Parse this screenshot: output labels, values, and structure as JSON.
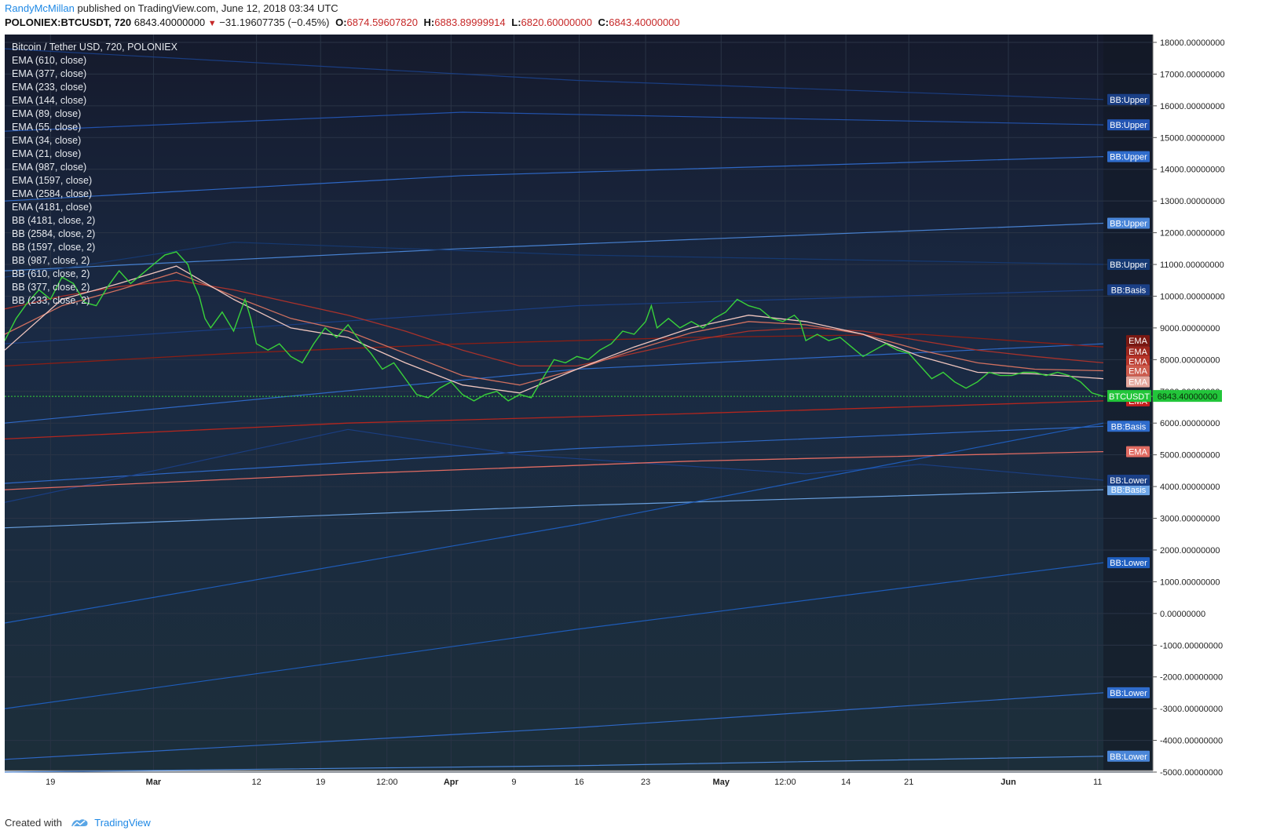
{
  "header": {
    "author": "RandyMcMillan",
    "published_text": "published on TradingView.com, June 12, 2018 03:34 UTC"
  },
  "symbol_line": {
    "symbol": "POLONIEX:BTCUSDT, 720",
    "last": "6843.40000000",
    "change": "−31.19607735 (−0.45%)",
    "o_label": "O:",
    "o_value": "6874.59607820",
    "h_label": "H:",
    "h_value": "6883.89999914",
    "l_label": "L:",
    "l_value": "6820.60000000",
    "c_label": "C:",
    "c_value": "6843.40000000"
  },
  "legend": {
    "title": "Bitcoin / Tether USD, 720, POLONIEX",
    "items": [
      "EMA (610, close)",
      "EMA (377, close)",
      "EMA (233, close)",
      "EMA (144, close)",
      "EMA (89, close)",
      "EMA (55, close)",
      "EMA (34, close)",
      "EMA (21, close)",
      "EMA (987, close)",
      "EMA (1597, close)",
      "EMA (2584, close)",
      "EMA (4181, close)",
      "BB (4181, close, 2)",
      "BB (2584, close, 2)",
      "BB (1597, close, 2)",
      "BB (987, close, 2)",
      "BB (610, close, 2)",
      "BB (377, close, 2)",
      "BB (233, close, 2)"
    ]
  },
  "footer": {
    "created_with": "Created with",
    "brand": "TradingView"
  },
  "colors": {
    "background": "#131722",
    "price": "#39d23a",
    "ema_red": "#a8322b",
    "ema_pink": "#e8a7a0",
    "bb_blue": "#2f6ccc",
    "price_tag": "#22c53a"
  },
  "chart_data": {
    "type": "line",
    "symbol": "POLONIEX:BTCUSDT",
    "interval": "720",
    "ylim": [
      -5000,
      18000
    ],
    "y_ticks": [
      18000,
      17000,
      16000,
      15000,
      14000,
      13000,
      12000,
      11000,
      10000,
      9000,
      8000,
      7000,
      6000,
      5000,
      4000,
      3000,
      2000,
      1000,
      0,
      -1000,
      -2000,
      -3000,
      -4000,
      -5000
    ],
    "y_tick_labels": [
      "18000.00000000",
      "17000.00000000",
      "16000.00000000",
      "15000.00000000",
      "14000.00000000",
      "13000.00000000",
      "12000.00000000",
      "11000.00000000",
      "10000.00000000",
      "9000.00000000",
      "8000.00000000",
      "7000.00000000",
      "6000.00000000",
      "5000.00000000",
      "4000.00000000",
      "3000.00000000",
      "2000.00000000",
      "1000.00000000",
      "0.00000000",
      "-1000.00000000",
      "-2000.00000000",
      "-3000.00000000",
      "-4000.00000000",
      "-5000.00000000"
    ],
    "x_ticks": [
      {
        "t": 0.04,
        "label": "19"
      },
      {
        "t": 0.13,
        "label": "Mar"
      },
      {
        "t": 0.22,
        "label": "12"
      },
      {
        "t": 0.276,
        "label": "19"
      },
      {
        "t": 0.334,
        "label": "12:00"
      },
      {
        "t": 0.39,
        "label": "Apr"
      },
      {
        "t": 0.445,
        "label": "9"
      },
      {
        "t": 0.502,
        "label": "16"
      },
      {
        "t": 0.56,
        "label": "23"
      },
      {
        "t": 0.626,
        "label": "May"
      },
      {
        "t": 0.682,
        "label": "12:00"
      },
      {
        "t": 0.735,
        "label": "14"
      },
      {
        "t": 0.79,
        "label": "21"
      },
      {
        "t": 0.877,
        "label": "Jun"
      },
      {
        "t": 0.955,
        "label": "11"
      }
    ],
    "price": [
      [
        0.0,
        8600
      ],
      [
        0.01,
        9300
      ],
      [
        0.02,
        9800
      ],
      [
        0.03,
        10200
      ],
      [
        0.04,
        9900
      ],
      [
        0.05,
        10600
      ],
      [
        0.06,
        10400
      ],
      [
        0.07,
        9800
      ],
      [
        0.08,
        9700
      ],
      [
        0.09,
        10300
      ],
      [
        0.1,
        10800
      ],
      [
        0.11,
        10400
      ],
      [
        0.12,
        10700
      ],
      [
        0.13,
        11000
      ],
      [
        0.14,
        11300
      ],
      [
        0.15,
        11400
      ],
      [
        0.16,
        11000
      ],
      [
        0.165,
        10400
      ],
      [
        0.17,
        10000
      ],
      [
        0.175,
        9300
      ],
      [
        0.18,
        9000
      ],
      [
        0.19,
        9500
      ],
      [
        0.2,
        8900
      ],
      [
        0.205,
        9400
      ],
      [
        0.21,
        9900
      ],
      [
        0.215,
        9300
      ],
      [
        0.22,
        8500
      ],
      [
        0.23,
        8300
      ],
      [
        0.24,
        8500
      ],
      [
        0.25,
        8100
      ],
      [
        0.26,
        7900
      ],
      [
        0.27,
        8500
      ],
      [
        0.28,
        9000
      ],
      [
        0.29,
        8700
      ],
      [
        0.3,
        9100
      ],
      [
        0.31,
        8600
      ],
      [
        0.32,
        8200
      ],
      [
        0.33,
        7700
      ],
      [
        0.34,
        7900
      ],
      [
        0.35,
        7400
      ],
      [
        0.36,
        6900
      ],
      [
        0.37,
        6800
      ],
      [
        0.38,
        7100
      ],
      [
        0.39,
        7300
      ],
      [
        0.4,
        6900
      ],
      [
        0.41,
        6700
      ],
      [
        0.42,
        6900
      ],
      [
        0.43,
        7000
      ],
      [
        0.44,
        6700
      ],
      [
        0.45,
        6900
      ],
      [
        0.46,
        6800
      ],
      [
        0.47,
        7400
      ],
      [
        0.48,
        8000
      ],
      [
        0.49,
        7900
      ],
      [
        0.5,
        8100
      ],
      [
        0.51,
        8000
      ],
      [
        0.52,
        8300
      ],
      [
        0.53,
        8500
      ],
      [
        0.54,
        8900
      ],
      [
        0.55,
        8800
      ],
      [
        0.56,
        9200
      ],
      [
        0.565,
        9700
      ],
      [
        0.57,
        9000
      ],
      [
        0.58,
        9300
      ],
      [
        0.59,
        9000
      ],
      [
        0.6,
        9200
      ],
      [
        0.61,
        9000
      ],
      [
        0.62,
        9300
      ],
      [
        0.63,
        9500
      ],
      [
        0.64,
        9900
      ],
      [
        0.65,
        9700
      ],
      [
        0.66,
        9600
      ],
      [
        0.67,
        9300
      ],
      [
        0.68,
        9200
      ],
      [
        0.69,
        9400
      ],
      [
        0.695,
        9200
      ],
      [
        0.7,
        8600
      ],
      [
        0.71,
        8800
      ],
      [
        0.72,
        8600
      ],
      [
        0.73,
        8700
      ],
      [
        0.74,
        8400
      ],
      [
        0.75,
        8100
      ],
      [
        0.76,
        8300
      ],
      [
        0.77,
        8500
      ],
      [
        0.78,
        8300
      ],
      [
        0.79,
        8200
      ],
      [
        0.8,
        7800
      ],
      [
        0.81,
        7400
      ],
      [
        0.82,
        7600
      ],
      [
        0.83,
        7300
      ],
      [
        0.84,
        7100
      ],
      [
        0.85,
        7300
      ],
      [
        0.86,
        7600
      ],
      [
        0.87,
        7500
      ],
      [
        0.88,
        7500
      ],
      [
        0.89,
        7600
      ],
      [
        0.9,
        7600
      ],
      [
        0.91,
        7500
      ],
      [
        0.92,
        7600
      ],
      [
        0.93,
        7500
      ],
      [
        0.94,
        7300
      ],
      [
        0.95,
        6950
      ],
      [
        0.96,
        6843
      ]
    ],
    "ema_fast": [
      [
        0.0,
        8300
      ],
      [
        0.05,
        9900
      ],
      [
        0.1,
        10400
      ],
      [
        0.15,
        10950
      ],
      [
        0.2,
        9900
      ],
      [
        0.25,
        9000
      ],
      [
        0.3,
        8700
      ],
      [
        0.35,
        7900
      ],
      [
        0.4,
        7200
      ],
      [
        0.45,
        6950
      ],
      [
        0.5,
        7700
      ],
      [
        0.55,
        8400
      ],
      [
        0.6,
        9000
      ],
      [
        0.65,
        9400
      ],
      [
        0.7,
        9200
      ],
      [
        0.75,
        8800
      ],
      [
        0.8,
        8100
      ],
      [
        0.85,
        7600
      ],
      [
        0.9,
        7550
      ],
      [
        0.96,
        7400
      ]
    ],
    "ema_mid": [
      [
        0.0,
        8800
      ],
      [
        0.05,
        9700
      ],
      [
        0.1,
        10200
      ],
      [
        0.15,
        10750
      ],
      [
        0.2,
        10000
      ],
      [
        0.25,
        9300
      ],
      [
        0.3,
        8900
      ],
      [
        0.35,
        8200
      ],
      [
        0.4,
        7500
      ],
      [
        0.45,
        7200
      ],
      [
        0.5,
        7700
      ],
      [
        0.55,
        8300
      ],
      [
        0.6,
        8850
      ],
      [
        0.65,
        9200
      ],
      [
        0.7,
        9100
      ],
      [
        0.75,
        8800
      ],
      [
        0.8,
        8300
      ],
      [
        0.85,
        7900
      ],
      [
        0.9,
        7700
      ],
      [
        0.96,
        7650
      ]
    ],
    "ema_slow": [
      [
        0.0,
        9600
      ],
      [
        0.05,
        10000
      ],
      [
        0.1,
        10300
      ],
      [
        0.15,
        10500
      ],
      [
        0.2,
        10200
      ],
      [
        0.25,
        9800
      ],
      [
        0.3,
        9400
      ],
      [
        0.35,
        8900
      ],
      [
        0.4,
        8300
      ],
      [
        0.45,
        7800
      ],
      [
        0.5,
        7800
      ],
      [
        0.55,
        8200
      ],
      [
        0.6,
        8600
      ],
      [
        0.65,
        8900
      ],
      [
        0.7,
        9000
      ],
      [
        0.75,
        8900
      ],
      [
        0.8,
        8600
      ],
      [
        0.85,
        8300
      ],
      [
        0.9,
        8100
      ],
      [
        0.96,
        7900
      ]
    ],
    "ema_long": [
      [
        0.0,
        7800
      ],
      [
        0.2,
        8200
      ],
      [
        0.4,
        8500
      ],
      [
        0.6,
        8700
      ],
      [
        0.8,
        8800
      ],
      [
        0.96,
        8400
      ]
    ],
    "ema_1597": [
      [
        0.0,
        5500
      ],
      [
        0.3,
        6000
      ],
      [
        0.6,
        6300
      ],
      [
        0.96,
        6700
      ]
    ],
    "ema_2584": [
      [
        0.0,
        3900
      ],
      [
        0.3,
        4400
      ],
      [
        0.6,
        4800
      ],
      [
        0.96,
        5100
      ]
    ],
    "bb_lines": [
      {
        "name": "BB:Upper",
        "points": [
          [
            0.0,
            17800
          ],
          [
            0.5,
            16800
          ],
          [
            0.96,
            16200
          ]
        ]
      },
      {
        "name": "BB:Upper",
        "points": [
          [
            0.0,
            15200
          ],
          [
            0.4,
            15800
          ],
          [
            0.96,
            15400
          ]
        ]
      },
      {
        "name": "BB:Upper",
        "points": [
          [
            0.0,
            13000
          ],
          [
            0.4,
            13800
          ],
          [
            0.96,
            14400
          ]
        ]
      },
      {
        "name": "BB:Upper",
        "points": [
          [
            0.0,
            10800
          ],
          [
            0.4,
            11500
          ],
          [
            0.96,
            12300
          ]
        ]
      },
      {
        "name": "BB:Upper",
        "points": [
          [
            0.0,
            10600
          ],
          [
            0.2,
            11700
          ],
          [
            0.5,
            11300
          ],
          [
            0.96,
            11000
          ]
        ]
      },
      {
        "name": "BB:Basis",
        "points": [
          [
            0.0,
            8500
          ],
          [
            0.5,
            9700
          ],
          [
            0.96,
            10200
          ]
        ]
      },
      {
        "name": "BB:Basis",
        "points": [
          [
            0.0,
            6000
          ],
          [
            0.5,
            7700
          ],
          [
            0.96,
            8500
          ]
        ]
      },
      {
        "name": "BB:Basis",
        "points": [
          [
            0.0,
            4100
          ],
          [
            0.5,
            5200
          ],
          [
            0.96,
            5900
          ]
        ]
      },
      {
        "name": "BB:Basis",
        "points": [
          [
            0.0,
            2700
          ],
          [
            0.5,
            3400
          ],
          [
            0.96,
            3900
          ]
        ]
      },
      {
        "name": "BB:Lower",
        "points": [
          [
            0.0,
            3500
          ],
          [
            0.3,
            5800
          ],
          [
            0.45,
            5000
          ],
          [
            0.7,
            4400
          ],
          [
            0.8,
            4700
          ],
          [
            0.96,
            4200
          ]
        ]
      },
      {
        "name": "BB:Lower",
        "points": [
          [
            0.0,
            -300
          ],
          [
            0.5,
            2800
          ],
          [
            0.96,
            6000
          ]
        ]
      },
      {
        "name": "BB:Lower",
        "points": [
          [
            0.0,
            -3000
          ],
          [
            0.5,
            -500
          ],
          [
            0.96,
            1600
          ]
        ]
      },
      {
        "name": "BB:Lower",
        "points": [
          [
            0.0,
            -4600
          ],
          [
            0.5,
            -3600
          ],
          [
            0.96,
            -2500
          ]
        ]
      },
      {
        "name": "BB:Lower",
        "points": [
          [
            0.0,
            -5000
          ],
          [
            0.5,
            -4800
          ],
          [
            0.96,
            -4500
          ]
        ]
      }
    ],
    "right_labels": [
      {
        "text": "BB:Upper",
        "y": 16200,
        "color": "#1a3f86"
      },
      {
        "text": "BB:Upper",
        "y": 15400,
        "color": "#2355b3"
      },
      {
        "text": "BB:Upper",
        "y": 14400,
        "color": "#2f6ccc"
      },
      {
        "text": "BB:Upper",
        "y": 12300,
        "color": "#4a86d8"
      },
      {
        "text": "BB:Upper",
        "y": 11000,
        "color": "#163a74"
      },
      {
        "text": "BB:Basis",
        "y": 10200,
        "color": "#1a3f86"
      },
      {
        "text": "BB:Basis",
        "y": 5900,
        "color": "#2f6ccc"
      },
      {
        "text": "BB:Basis",
        "y": 3900,
        "color": "#6ea6e8"
      },
      {
        "text": "BB:Lower",
        "y": 4200,
        "color": "#1a3f86"
      },
      {
        "text": "BB:Lower",
        "y": 1600,
        "color": "#1f5fc0"
      },
      {
        "text": "BB:Lower",
        "y": -2500,
        "color": "#2f6ccc"
      },
      {
        "text": "BB:Lower",
        "y": -4500,
        "color": "#4a86d8"
      },
      {
        "text": "EMA",
        "y": 8600,
        "color": "#7a1812"
      },
      {
        "text": "EMA",
        "y": 8250,
        "color": "#9c251c"
      },
      {
        "text": "EMA",
        "y": 7950,
        "color": "#b7352a"
      },
      {
        "text": "EMA",
        "y": 7650,
        "color": "#cc5a4c"
      },
      {
        "text": "EMA",
        "y": 7300,
        "color": "#e4a89e"
      },
      {
        "text": "EMA",
        "y": 6700,
        "color": "#c61f1f"
      },
      {
        "text": "EMA",
        "y": 5100,
        "color": "#e06b62"
      }
    ],
    "last_price": {
      "value": 6843.4,
      "label": "6843.40000000",
      "tag": "BTCUSDT"
    }
  }
}
